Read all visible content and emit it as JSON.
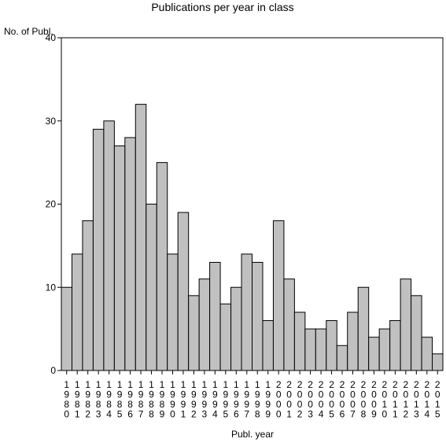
{
  "chart_data": {
    "type": "bar",
    "title": "Publications per year in class",
    "xlabel": "Publ. year",
    "ylabel": "No. of Publ.",
    "ylim": [
      0,
      40
    ],
    "yticks": [
      0,
      10,
      20,
      30,
      40
    ],
    "grid": false,
    "categories": [
      "1980",
      "1981",
      "1982",
      "1983",
      "1984",
      "1985",
      "1986",
      "1987",
      "1988",
      "1989",
      "1990",
      "1991",
      "1992",
      "1993",
      "1994",
      "1995",
      "1996",
      "1997",
      "1998",
      "1999",
      "2000",
      "2001",
      "2002",
      "2003",
      "2004",
      "2005",
      "2006",
      "2007",
      "2008",
      "2009",
      "2010",
      "2011",
      "2012",
      "2013",
      "2014",
      "2015"
    ],
    "values": [
      10,
      14,
      18,
      29,
      30,
      27,
      28,
      32,
      20,
      25,
      14,
      19,
      9,
      11,
      13,
      8,
      10,
      14,
      13,
      6,
      18,
      11,
      7,
      5,
      5,
      6,
      3,
      7,
      10,
      4,
      5,
      6,
      11,
      9,
      4,
      2
    ],
    "bar_color": "#c0c0c0",
    "bar_edge_color": "#000000"
  }
}
